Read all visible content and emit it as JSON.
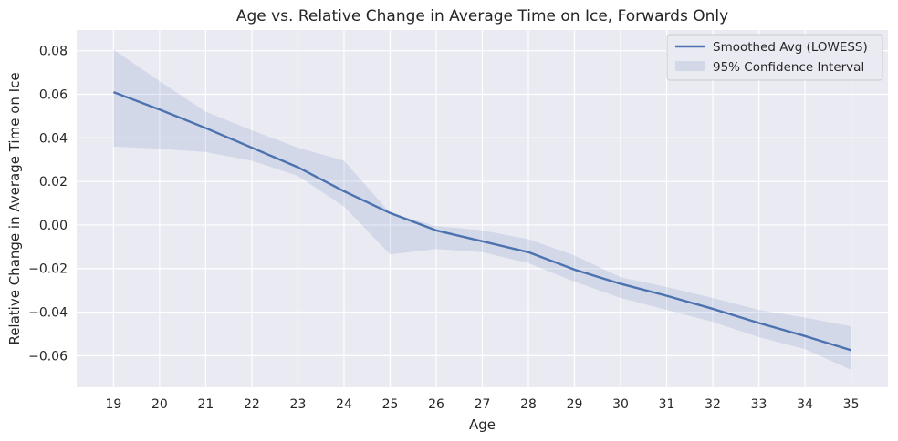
{
  "chart_data": {
    "type": "line",
    "title": "Age vs. Relative Change in Average Time on Ice, Forwards Only",
    "xlabel": "Age",
    "ylabel": "Relative Change in Average Time on Ice",
    "xlim": [
      18.2,
      35.8
    ],
    "ylim": [
      -0.0745,
      0.0895
    ],
    "x_ticks": [
      19,
      20,
      21,
      22,
      23,
      24,
      25,
      26,
      27,
      28,
      29,
      30,
      31,
      32,
      33,
      34,
      35
    ],
    "y_ticks": [
      0.08,
      0.06,
      0.04,
      0.02,
      0.0,
      -0.02,
      -0.04,
      -0.06
    ],
    "y_tick_labels": [
      "0.08",
      "0.06",
      "0.04",
      "0.02",
      "0.00",
      "−0.02",
      "−0.04",
      "−0.06"
    ],
    "grid": true,
    "legend_position": "top-right",
    "series": [
      {
        "name": "Smoothed Avg (LOWESS)",
        "x": [
          19,
          20,
          21,
          22,
          23,
          24,
          25,
          26,
          27,
          28,
          29,
          30,
          31,
          32,
          33,
          34,
          35
        ],
        "y": [
          0.061,
          0.053,
          0.0445,
          0.0355,
          0.0265,
          0.0155,
          0.0055,
          -0.0025,
          -0.0075,
          -0.0125,
          -0.0205,
          -0.027,
          -0.0325,
          -0.0385,
          -0.045,
          -0.051,
          -0.0575
        ],
        "color": "#4c72b0"
      },
      {
        "name": "95% Confidence Interval",
        "type": "band",
        "x": [
          19,
          20,
          21,
          22,
          23,
          24,
          25,
          26,
          27,
          28,
          29,
          30,
          31,
          32,
          33,
          34,
          35
        ],
        "lower": [
          0.036,
          0.035,
          0.0335,
          0.0295,
          0.0225,
          0.0085,
          -0.0135,
          -0.011,
          -0.0125,
          -0.0175,
          -0.026,
          -0.0335,
          -0.039,
          -0.0445,
          -0.0515,
          -0.057,
          -0.0665
        ],
        "upper": [
          0.0805,
          0.066,
          0.052,
          0.0435,
          0.0355,
          0.0295,
          0.0055,
          -0.0005,
          -0.0025,
          -0.0065,
          -0.014,
          -0.024,
          -0.0285,
          -0.0335,
          -0.039,
          -0.0425,
          -0.0465
        ],
        "color": "#c9d1e8"
      }
    ]
  }
}
